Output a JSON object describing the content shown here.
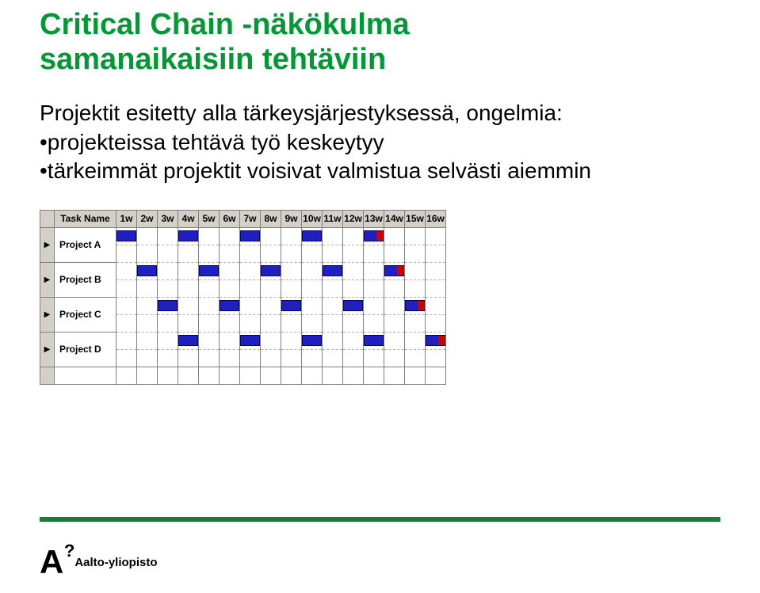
{
  "title_line1": "Critical Chain -näkökulma",
  "title_line2": "samanaikaisiin tehtäviin",
  "intro": "Projektit esitetty alla tärkeysjärjestyksessä, ongelmia:",
  "bullet1": "•projekteissa tehtävä työ keskeytyy",
  "bullet2": "•tärkeimmät projektit voisivat valmistua selvästi aiemmin",
  "logo_text": "Aalto-yliopisto",
  "gantt": {
    "task_header": "Task Name",
    "weeks": [
      "1w",
      "2w",
      "3w",
      "4w",
      "5w",
      "6w",
      "7w",
      "8w",
      "9w",
      "10w",
      "11w",
      "12w",
      "13w",
      "14w",
      "15w",
      "16w"
    ],
    "rows": [
      {
        "name": "Project A",
        "bars": [
          1,
          4,
          7,
          10
        ],
        "marker": 13
      },
      {
        "name": "Project B",
        "bars": [
          2,
          5,
          8,
          11
        ],
        "marker": 14
      },
      {
        "name": "Project C",
        "bars": [
          3,
          6,
          9,
          12
        ],
        "marker": 15
      },
      {
        "name": "Project D",
        "bars": [
          4,
          7,
          10,
          13
        ],
        "marker": 16
      }
    ],
    "colors": {
      "bar_fill": "#2020c0",
      "bar_border": "#000080",
      "marker": "#cc0000",
      "header_bg": "#d4d0c8",
      "grid": "#808080",
      "grid_dashed": "#b0b0b0"
    }
  }
}
